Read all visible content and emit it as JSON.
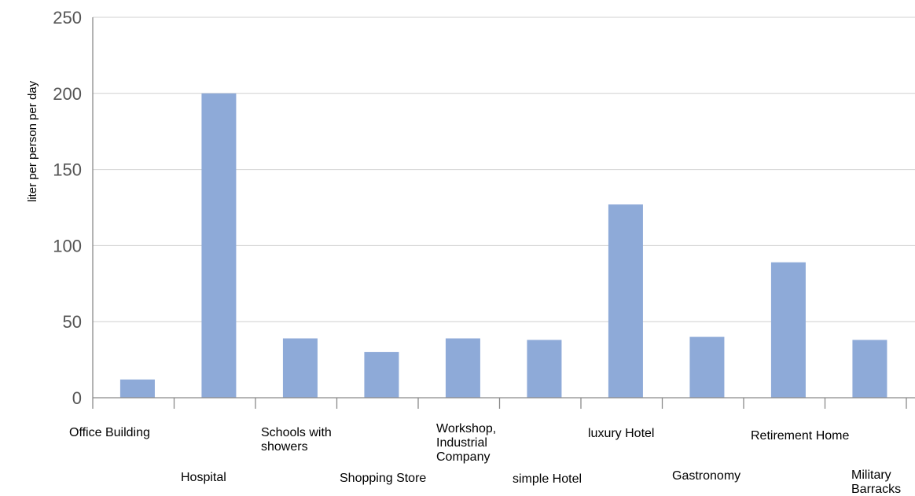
{
  "chart_data": {
    "type": "bar",
    "title": "",
    "xlabel": "",
    "ylabel": "liter per person per day",
    "ylim": [
      0,
      250
    ],
    "yticks": [
      0,
      50,
      100,
      150,
      200,
      250
    ],
    "grid": true,
    "legend": "none",
    "categories": [
      "Office Building",
      "Hospital",
      "Schools with showers",
      "Shopping Store",
      "Workshop, Industrial Company",
      "simple Hotel",
      "luxury Hotel",
      "Gastronomy",
      "Retirement Home",
      "Military Barracks"
    ],
    "category_label_lines": [
      [
        "Office Building"
      ],
      [
        "Hospital"
      ],
      [
        "Schools with",
        "showers"
      ],
      [
        "Shopping Store"
      ],
      [
        "Workshop,",
        "Industrial",
        "Company"
      ],
      [
        "simple Hotel"
      ],
      [
        "luxury Hotel"
      ],
      [
        "Gastronomy"
      ],
      [
        "Retirement Home"
      ],
      [
        "Military",
        "Barracks"
      ]
    ],
    "values": [
      12,
      200,
      39,
      30,
      39,
      38,
      127,
      40,
      89,
      38
    ],
    "colors": {
      "bar": "#8eaad8",
      "grid": "#d0d0d0",
      "axis": "#8a8a8a",
      "tick_label": "#555555"
    }
  }
}
